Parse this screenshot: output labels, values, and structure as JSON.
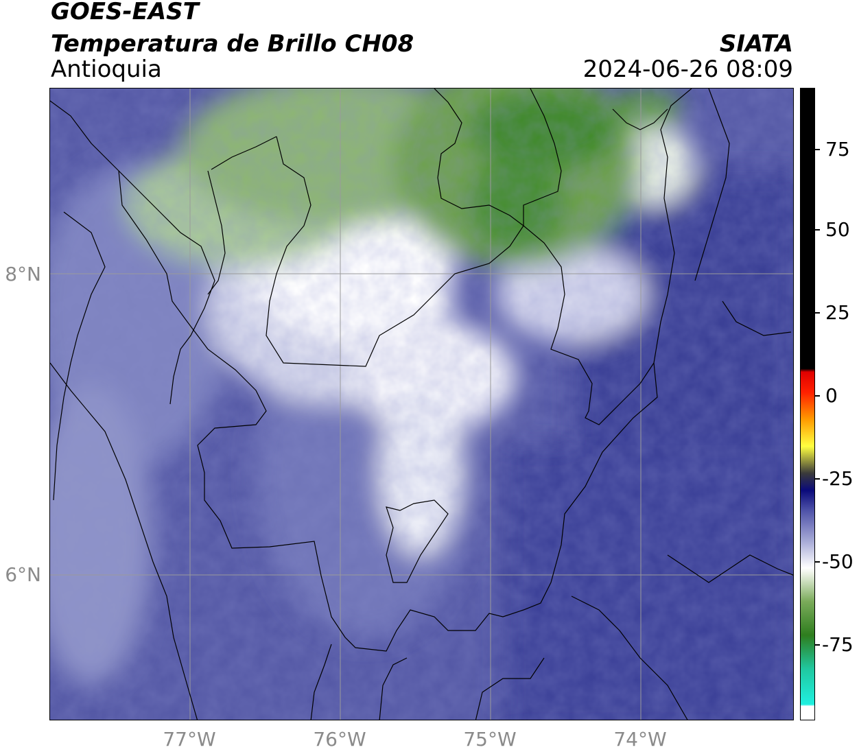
{
  "header": {
    "line1": "GOES-EAST",
    "line2": "Temperatura de Brillo CH08",
    "region": "Antioquia",
    "org": "SIATA",
    "datetime": "2024-06-26 08:09"
  },
  "map": {
    "lat_labels": [
      "8°N",
      "6°N"
    ],
    "lon_labels": [
      "77°W",
      "76°W",
      "75°W",
      "74°W"
    ],
    "colors": {
      "deep_blue": "#3a3f96",
      "mid_blue": "#5a61a8",
      "light_blue": "#8f94c8",
      "pale": "#dfe1ef",
      "white": "#ffffff",
      "pale_green": "#d7e5cc",
      "green": "#5f9a3f",
      "dark_green": "#2f7a1e",
      "border": "#000000",
      "grid": "#9a9a9a"
    }
  },
  "colorbar": {
    "labels": [
      "75",
      "50",
      "25",
      "0",
      "-25",
      "-50",
      "-75"
    ],
    "min": -95,
    "max": 92,
    "stops": [
      {
        "value": -95,
        "color": "#ffffff"
      },
      {
        "value": -91,
        "color": "#ffffff"
      },
      {
        "value": -90.5,
        "color": "#20f0e0"
      },
      {
        "value": -80,
        "color": "#20c8a0"
      },
      {
        "value": -70,
        "color": "#2e7d1e"
      },
      {
        "value": -60,
        "color": "#7aab5a"
      },
      {
        "value": -52,
        "color": "#e8f0e0"
      },
      {
        "value": -50,
        "color": "#ffffff"
      },
      {
        "value": -42,
        "color": "#a6a9d6"
      },
      {
        "value": -33,
        "color": "#4e52a8"
      },
      {
        "value": -27,
        "color": "#0a0a7a"
      },
      {
        "value": -22,
        "color": "#3a3a3a"
      },
      {
        "value": -14,
        "color": "#ffff40"
      },
      {
        "value": -6,
        "color": "#ff9a00"
      },
      {
        "value": 2,
        "color": "#ff2000"
      },
      {
        "value": 8,
        "color": "#e00000"
      },
      {
        "value": 9,
        "color": "#000000"
      },
      {
        "value": 92,
        "color": "#000000"
      }
    ]
  }
}
